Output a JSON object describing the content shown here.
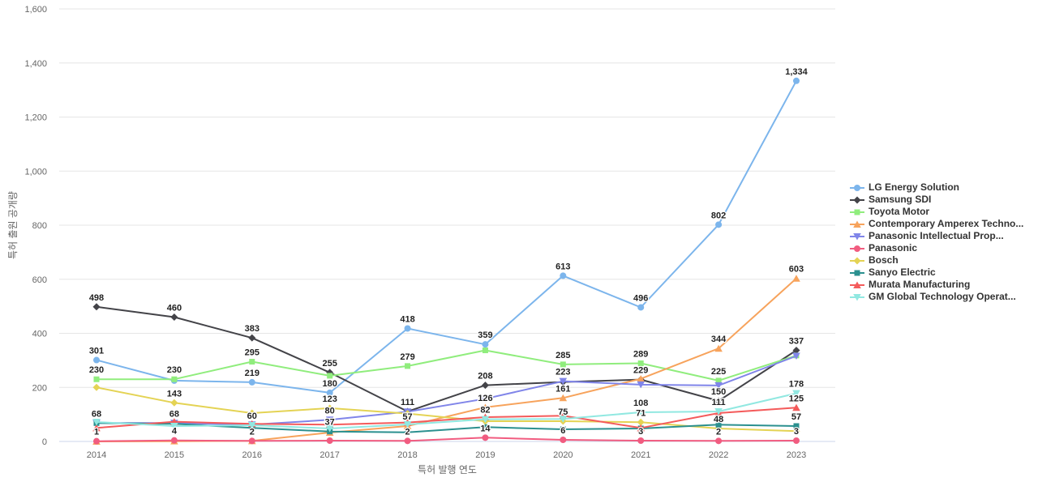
{
  "chart_data": {
    "type": "line",
    "title": "",
    "xlabel": "특허 발행 연도",
    "ylabel": "특허 출원 공개량",
    "x": [
      2014,
      2015,
      2016,
      2017,
      2018,
      2019,
      2020,
      2021,
      2022,
      2023
    ],
    "ylim": [
      0,
      1600
    ],
    "ytick_interval": 200,
    "yticks": [
      0,
      200,
      400,
      600,
      800,
      1000,
      1200,
      1400,
      1600
    ],
    "grid": true,
    "legend_position": "right-middle",
    "series": [
      {
        "name": "LG Energy Solution",
        "color": "#7cb5ec",
        "symbol": "circle",
        "values": [
          301,
          225,
          219,
          180,
          418,
          359,
          613,
          496,
          802,
          1334
        ],
        "labels": [
          "301",
          null,
          "219",
          "180",
          "418",
          "359",
          "613",
          "496",
          "802",
          "1,334"
        ]
      },
      {
        "name": "Samsung SDI",
        "color": "#434348",
        "symbol": "diamond",
        "values": [
          498,
          460,
          383,
          255,
          111,
          208,
          220,
          229,
          150,
          337
        ],
        "labels": [
          "498",
          "460",
          "383",
          "255",
          "111",
          "208",
          null,
          "229",
          "150",
          "337"
        ]
      },
      {
        "name": "Toyota Motor",
        "color": "#90ed7d",
        "symbol": "square",
        "values": [
          230,
          230,
          295,
          243,
          279,
          337,
          285,
          289,
          225,
          318
        ],
        "labels": [
          "230",
          "230",
          "295",
          null,
          "279",
          null,
          "285",
          "289",
          "225",
          null
        ]
      },
      {
        "name": "Contemporary Amperex Techno...",
        "color": "#f7a35c",
        "symbol": "triangle",
        "values": [
          0,
          1,
          2,
          33,
          57,
          126,
          161,
          232,
          344,
          603
        ],
        "labels": [
          null,
          null,
          null,
          null,
          "57",
          "126",
          "161",
          null,
          "344",
          "603"
        ]
      },
      {
        "name": "Panasonic Intellectual Prop...",
        "color": "#8085e9",
        "symbol": "triangle-down",
        "values": [
          68,
          68,
          62,
          80,
          110,
          158,
          223,
          210,
          207,
          316
        ],
        "labels": [
          null,
          "68",
          null,
          "80",
          null,
          null,
          "223",
          null,
          null,
          null
        ]
      },
      {
        "name": "Panasonic",
        "color": "#f15c80",
        "symbol": "circle",
        "values": [
          1,
          4,
          2,
          3,
          2,
          14,
          6,
          3,
          2,
          3
        ],
        "labels": [
          "1",
          "4",
          "2",
          null,
          "2",
          "14",
          "6",
          "3",
          "2",
          "3"
        ]
      },
      {
        "name": "Bosch",
        "color": "#e4d354",
        "symbol": "diamond",
        "values": [
          200,
          143,
          105,
          123,
          103,
          75,
          75,
          71,
          48,
          38
        ],
        "labels": [
          null,
          "143",
          null,
          "123",
          null,
          null,
          "75",
          "71",
          "48",
          null
        ]
      },
      {
        "name": "Sanyo Electric",
        "color": "#2b908f",
        "symbol": "square",
        "values": [
          68,
          65,
          50,
          37,
          34,
          53,
          45,
          48,
          62,
          57
        ],
        "labels": [
          "68",
          null,
          null,
          "37",
          null,
          null,
          null,
          null,
          null,
          "57"
        ]
      },
      {
        "name": "Murata Manufacturing",
        "color": "#f45b5b",
        "symbol": "triangle",
        "values": [
          50,
          73,
          65,
          62,
          70,
          90,
          95,
          50,
          105,
          125
        ],
        "labels": [
          null,
          null,
          null,
          null,
          null,
          null,
          null,
          null,
          null,
          "125"
        ]
      },
      {
        "name": "GM Global Technology Operat...",
        "color": "#91e8e1",
        "symbol": "triangle-down",
        "values": [
          72,
          57,
          60,
          48,
          63,
          82,
          83,
          108,
          111,
          178
        ],
        "labels": [
          null,
          null,
          "60",
          null,
          null,
          "82",
          null,
          "108",
          "111",
          "178"
        ]
      }
    ]
  },
  "colors": {
    "background": "#ffffff",
    "grid_line": "#e6e6e6",
    "x_axis_line": "#ccd6eb",
    "tick_label": "#666666",
    "axis_title": "#666666",
    "legend_text": "#333333",
    "data_label": "#222222"
  }
}
